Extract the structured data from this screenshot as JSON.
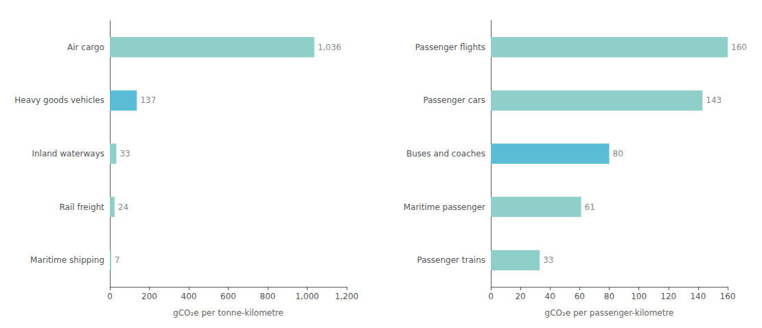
{
  "chart_data": [
    {
      "type": "bar",
      "orientation": "horizontal",
      "categories": [
        "Maritime shipping",
        "Rail freight",
        "Inland waterways",
        "Heavy goods vehicles",
        "Air cargo"
      ],
      "values": [
        7,
        24,
        33,
        137,
        1036
      ],
      "value_labels": [
        "7",
        "24",
        "33",
        "137",
        "1,036"
      ],
      "colors": [
        "#8ecfc9",
        "#8ecfc9",
        "#8ecfc9",
        "#5bbcd6",
        "#8ecfc9"
      ],
      "xlabel": "gCO₂e per tonne-kilometre",
      "xlim": [
        0,
        1200
      ],
      "xticks": [
        0,
        200,
        400,
        600,
        800,
        {
          "value": 1000,
          "label": "1,000"
        },
        {
          "value": 1200,
          "label": "1,200"
        }
      ],
      "data_labels": true,
      "grid": false
    },
    {
      "type": "bar",
      "orientation": "horizontal",
      "categories": [
        "Passenger trains",
        "Maritime passenger",
        "Buses and coaches",
        "Passenger cars",
        "Passenger flights"
      ],
      "values": [
        33,
        61,
        80,
        143,
        160
      ],
      "colors": [
        "#8ecfc9",
        "#8ecfc9",
        "#5bbcd6",
        "#8ecfc9",
        "#8ecfc9"
      ],
      "xlabel": "gCO₂e per passenger-kilometre",
      "xlim": [
        0,
        160
      ],
      "xticks": [
        0,
        20,
        40,
        60,
        80,
        100,
        120,
        140,
        160
      ],
      "data_labels": true,
      "grid": false
    }
  ]
}
